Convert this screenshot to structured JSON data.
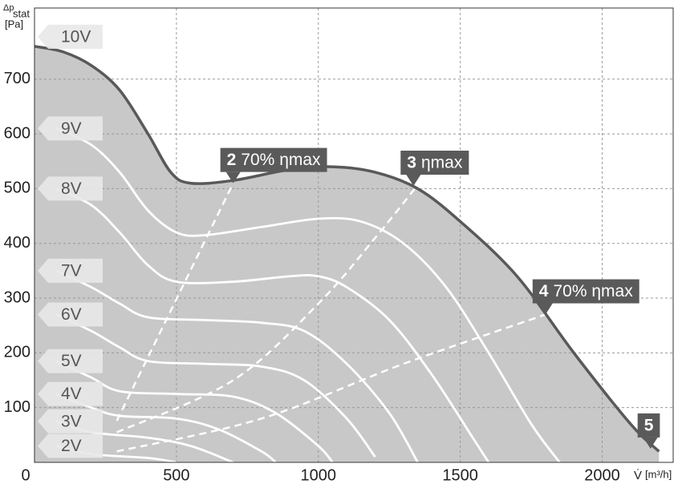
{
  "chart_data": {
    "type": "line",
    "y_label": {
      "symbol": "Δp",
      "subscript": "stat",
      "unit": "[Pa]"
    },
    "x_label": {
      "symbol": "V̇",
      "unit": "[m³/h]"
    },
    "xlim": [
      0,
      2250
    ],
    "ylim": [
      0,
      830
    ],
    "xticks": [
      0,
      500,
      1000,
      1500,
      2000
    ],
    "yticks": [
      100,
      200,
      300,
      400,
      500,
      600,
      700
    ],
    "grid": true,
    "fill_color": "#c8c8c8",
    "series": [
      {
        "name": "10V",
        "color": "#595959",
        "fill": true,
        "x": [
          0,
          100,
          200,
          300,
          400,
          480,
          550,
          700,
          900,
          1050,
          1200,
          1350,
          1500,
          1700,
          1900,
          2100,
          2200
        ],
        "values": [
          760,
          750,
          725,
          680,
          600,
          530,
          510,
          515,
          535,
          540,
          530,
          500,
          440,
          340,
          200,
          70,
          20
        ]
      },
      {
        "name": "9V",
        "color": "#ffffff",
        "x": [
          76,
          200,
          300,
          400,
          500,
          600,
          800,
          1000,
          1150,
          1300,
          1450,
          1600,
          1750,
          1850
        ],
        "values": [
          610,
          580,
          530,
          460,
          420,
          415,
          430,
          445,
          440,
          400,
          320,
          200,
          70,
          0
        ]
      },
      {
        "name": "8V",
        "color": "#ffffff",
        "x": [
          76,
          200,
          300,
          400,
          500,
          700,
          900,
          1000,
          1100,
          1250,
          1400,
          1550,
          1600
        ],
        "values": [
          500,
          470,
          420,
          360,
          330,
          330,
          340,
          340,
          320,
          260,
          160,
          40,
          0
        ]
      },
      {
        "name": "7V",
        "color": "#ffffff",
        "x": [
          76,
          200,
          300,
          400,
          600,
          800,
          950,
          1100,
          1250,
          1350
        ],
        "values": [
          350,
          320,
          290,
          265,
          260,
          255,
          240,
          180,
          90,
          0
        ]
      },
      {
        "name": "6V",
        "color": "#ffffff",
        "x": [
          76,
          200,
          300,
          400,
          600,
          800,
          950,
          1100,
          1200
        ],
        "values": [
          270,
          240,
          210,
          185,
          180,
          175,
          150,
          80,
          10
        ]
      },
      {
        "name": "5V",
        "color": "#ffffff",
        "x": [
          76,
          200,
          300,
          500,
          700,
          850,
          1000,
          1050
        ],
        "values": [
          185,
          155,
          130,
          125,
          120,
          90,
          30,
          0
        ]
      },
      {
        "name": "4V",
        "color": "#ffffff",
        "x": [
          76,
          200,
          300,
          500,
          650,
          800,
          850
        ],
        "values": [
          125,
          100,
          85,
          80,
          60,
          20,
          0
        ]
      },
      {
        "name": "3V",
        "color": "#ffffff",
        "x": [
          76,
          200,
          400,
          550,
          700
        ],
        "values": [
          75,
          55,
          45,
          30,
          0
        ]
      },
      {
        "name": "2V",
        "color": "#ffffff",
        "x": [
          76,
          200,
          400,
          500
        ],
        "values": [
          30,
          15,
          8,
          0
        ]
      }
    ],
    "system_lines": [
      {
        "x": [
          290,
          700
        ],
        "values": [
          76,
          510
        ]
      },
      {
        "x": [
          290,
          700,
          1000,
          1200,
          1340
        ],
        "values": [
          55,
          150,
          290,
          410,
          500
        ]
      },
      {
        "x": [
          290,
          800,
          1300,
          1800
        ],
        "values": [
          20,
          80,
          180,
          270
        ]
      }
    ],
    "annotations": [
      {
        "number": "2",
        "text": "70% ηmax",
        "x": 700,
        "y": 510
      },
      {
        "number": "3",
        "text": "ηmax",
        "x": 1335,
        "y": 505
      },
      {
        "number": "4",
        "text": "70% ηmax",
        "x": 1800,
        "y": 270
      },
      {
        "number": "5",
        "text": "",
        "x": 2170,
        "y": 25
      }
    ]
  }
}
